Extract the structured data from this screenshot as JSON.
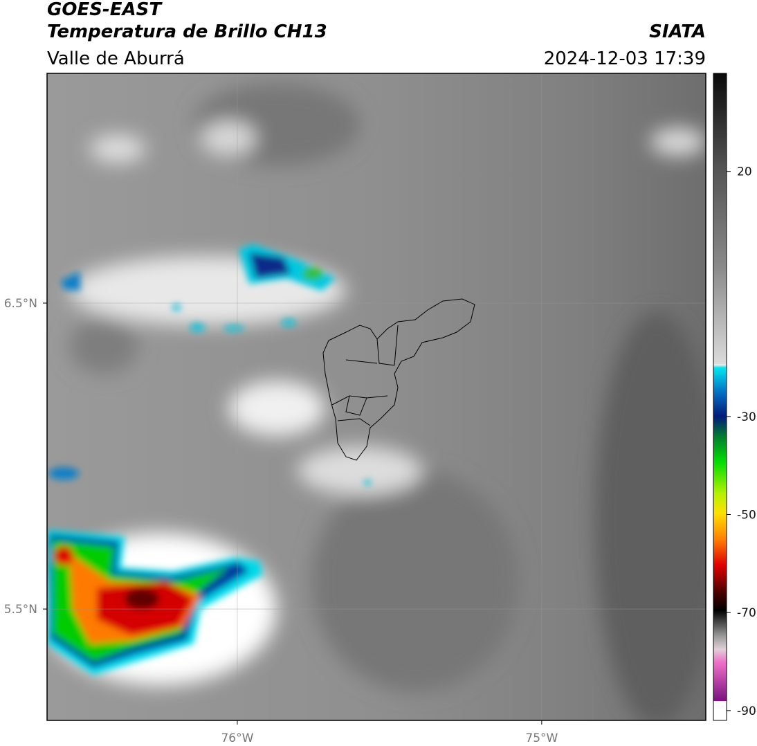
{
  "header": {
    "title": "GOES-EAST",
    "subtitle": "Temperatura de Brillo CH13",
    "region": "Valle de Aburrá",
    "agency": "SIATA",
    "datetime": "2024-12-03 17:39"
  },
  "map": {
    "xlim": [
      -76.625,
      -74.461
    ],
    "ylim": [
      5.136,
      7.251
    ],
    "xticks": [
      {
        "value": -76,
        "label": "76°W"
      },
      {
        "value": -75,
        "label": "75°W"
      }
    ],
    "yticks": [
      {
        "value": 6.5,
        "label": "6.5°N"
      },
      {
        "value": 5.5,
        "label": "5.5°N"
      }
    ]
  },
  "colorbar": {
    "lim": [
      -92,
      40
    ],
    "ticks": [
      20,
      -30,
      -50,
      -70,
      -90
    ]
  }
}
